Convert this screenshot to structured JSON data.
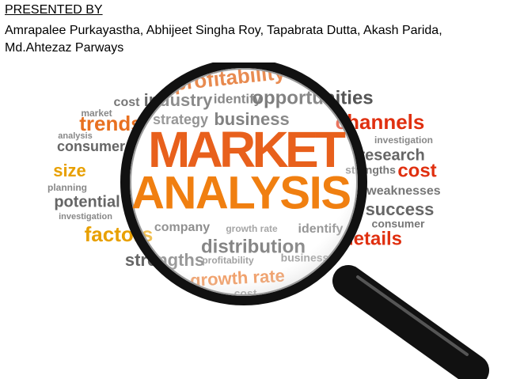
{
  "header": {
    "label": "PRESENTED BY",
    "authors_line1": "Amrapalee Purkayastha, Abhijeet Singha Roy, Tapabrata Dutta, Akash Parida,",
    "authors_line2": "Md.Ahtezaz Parways"
  },
  "image": {
    "headline1": "MARKET",
    "headline2": "ANALYSIS",
    "words": [
      "profitability",
      "industry",
      "identify",
      "opportunities",
      "cost",
      "trends",
      "strategy",
      "business",
      "channels",
      "market",
      "consumer",
      "analysis",
      "investigation",
      "research",
      "size",
      "cost",
      "strengths",
      "planning",
      "weaknesses",
      "potential",
      "success",
      "investigation",
      "consumer",
      "factors",
      "company",
      "growth rate",
      "identify",
      "distribution",
      "details",
      "strengths",
      "profitability",
      "business",
      "growth rate",
      "cost"
    ]
  }
}
